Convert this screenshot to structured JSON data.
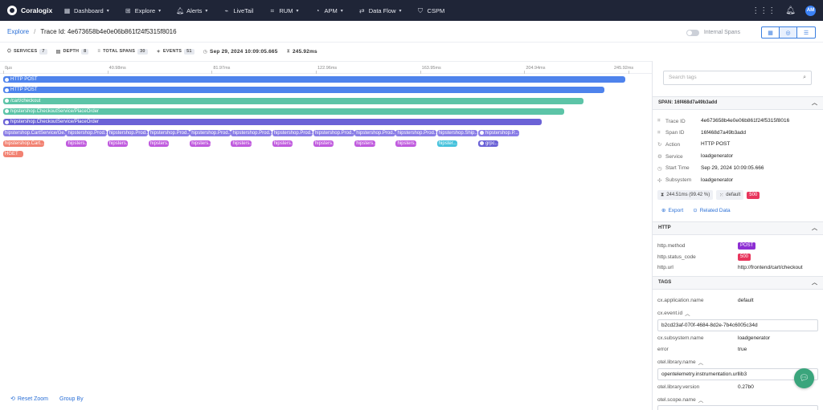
{
  "nav": {
    "brand": "Coralogix",
    "items": [
      {
        "label": "Dashboard",
        "icon": "grid-icon",
        "glyph": "▦",
        "caret": true
      },
      {
        "label": "Explore",
        "icon": "explore-icon",
        "glyph": "⊞",
        "caret": true
      },
      {
        "label": "Alerts",
        "icon": "bell-icon",
        "glyph": "🔔︎",
        "caret": true
      },
      {
        "label": "LiveTail",
        "icon": "livetail-icon",
        "glyph": "⌁",
        "caret": false
      },
      {
        "label": "RUM",
        "icon": "rum-icon",
        "glyph": "⌗",
        "caret": true
      },
      {
        "label": "APM",
        "icon": "gauge-icon",
        "glyph": "◔",
        "caret": true
      },
      {
        "label": "Data Flow",
        "icon": "dataflow-icon",
        "glyph": "⇄",
        "caret": true
      },
      {
        "label": "CSPM",
        "icon": "shield-icon",
        "glyph": "⛉",
        "caret": false
      }
    ],
    "avatar": "AM"
  },
  "breadcrumb": {
    "root": "Explore",
    "separator": "/",
    "current": "Trace Id: 4e673658b4e0e06b861f24f5315f8016"
  },
  "toolbar": {
    "internal_spans_label": "Internal Spans"
  },
  "stats": {
    "services_label": "SERVICES",
    "services_value": "7",
    "depth_label": "DEPTH",
    "depth_value": "8",
    "total_spans_label": "TOTAL SPANS",
    "total_spans_value": "30",
    "events_label": "EVENTS",
    "events_value": "51",
    "start_time": "Sep 29, 2024 10:09:05.665",
    "duration": "245.92ms"
  },
  "timeline": {
    "total_ms": 245.92,
    "ticks": [
      "0µs",
      "40.98ms",
      "81.97ms",
      "122.96ms",
      "163.95ms",
      "204.94ms",
      "245.92ms"
    ],
    "spans": [
      {
        "label": "HTTP POST",
        "color": "blue",
        "row": 0,
        "start": 0,
        "dur": 244.51
      },
      {
        "label": "HTTP POST",
        "color": "blue",
        "row": 1,
        "start": 0,
        "dur": 236.5
      },
      {
        "label": "/cart/checkout",
        "color": "teal",
        "row": 2,
        "start": 0,
        "dur": 228.2
      },
      {
        "label": "hipstershop.CheckoutService/PlaceOrder",
        "color": "teal",
        "row": 3,
        "start": 0,
        "dur": 220.5
      },
      {
        "label": "hipstershop.CheckoutService/PlaceOrder",
        "color": "violet",
        "row": 4,
        "start": 0,
        "dur": 211.7
      },
      {
        "label": "hipstershop.CartService/Ge...",
        "color": "lavender",
        "row": 5,
        "start": 0,
        "dur": 24.5
      },
      {
        "label": "hipstershop.Prod...",
        "color": "lavender",
        "row": 5,
        "start": 24.8,
        "dur": 16
      },
      {
        "label": "hipstershop.Prod...",
        "color": "lavender",
        "row": 5,
        "start": 41.0,
        "dur": 16
      },
      {
        "label": "hipstershop.Prod...",
        "color": "lavender",
        "row": 5,
        "start": 57.2,
        "dur": 16
      },
      {
        "label": "hipstershop.Prod...",
        "color": "lavender",
        "row": 5,
        "start": 73.4,
        "dur": 16
      },
      {
        "label": "hipstershop.Prod...",
        "color": "lavender",
        "row": 5,
        "start": 89.6,
        "dur": 16
      },
      {
        "label": "hipstershop.Prod...",
        "color": "lavender",
        "row": 5,
        "start": 105.8,
        "dur": 16
      },
      {
        "label": "hipstershop.Prod...",
        "color": "lavender",
        "row": 5,
        "start": 122.0,
        "dur": 16
      },
      {
        "label": "hipstershop.Prod...",
        "color": "lavender",
        "row": 5,
        "start": 138.2,
        "dur": 16
      },
      {
        "label": "hipstershop.Prod...",
        "color": "lavender",
        "row": 5,
        "start": 154.4,
        "dur": 16
      },
      {
        "label": "hipstershop.Ship...",
        "color": "lavender",
        "row": 5,
        "start": 170.6,
        "dur": 16
      },
      {
        "label": "hipstershop.P...",
        "color": "lavender",
        "row": 5,
        "start": 186.8,
        "dur": 16
      },
      {
        "label": "hipstershop.Cart...",
        "color": "salmon",
        "row": 6,
        "start": 0,
        "dur": 16
      },
      {
        "label": "hipsters...",
        "color": "lpurple",
        "row": 6,
        "start": 24.8,
        "dur": 8
      },
      {
        "label": "hipsters...",
        "color": "lpurple",
        "row": 6,
        "start": 41.0,
        "dur": 8
      },
      {
        "label": "hipsters...",
        "color": "lpurple",
        "row": 6,
        "start": 57.2,
        "dur": 8
      },
      {
        "label": "hipsters...",
        "color": "lpurple",
        "row": 6,
        "start": 73.4,
        "dur": 8
      },
      {
        "label": "hipsters...",
        "color": "lpurple",
        "row": 6,
        "start": 89.6,
        "dur": 8
      },
      {
        "label": "hipsters...",
        "color": "lpurple",
        "row": 6,
        "start": 105.8,
        "dur": 8
      },
      {
        "label": "hipsters...",
        "color": "lpurple",
        "row": 6,
        "start": 122.0,
        "dur": 8
      },
      {
        "label": "hipsters...",
        "color": "lpurple",
        "row": 6,
        "start": 138.2,
        "dur": 8
      },
      {
        "label": "hipsters...",
        "color": "lpurple",
        "row": 6,
        "start": 154.4,
        "dur": 8
      },
      {
        "label": "hipster...",
        "color": "cyan",
        "row": 6,
        "start": 170.6,
        "dur": 8
      },
      {
        "label": "grpc...",
        "color": "violet",
        "row": 6,
        "start": 186.8,
        "dur": 8
      },
      {
        "label": "HGET",
        "color": "salmon",
        "row": 7,
        "start": 0,
        "dur": 8
      }
    ]
  },
  "footer": {
    "reset_zoom": "Reset Zoom",
    "group_by": "Group By"
  },
  "panel": {
    "search_placeholder": "Search tags",
    "span_header": "SPAN: 16f468d7a49b3add",
    "span_fields": [
      {
        "key": "Trace ID",
        "value": "4e673658b4e0e06b861f24f5315f8016",
        "icon": "id-icon",
        "glyph": "⌗"
      },
      {
        "key": "Span ID",
        "value": "16f468d7a49b3add",
        "icon": "id-icon",
        "glyph": "⌗"
      },
      {
        "key": "Action",
        "value": "HTTP POST",
        "icon": "action-icon",
        "glyph": "↻"
      },
      {
        "key": "Service",
        "value": "loadgenerator",
        "icon": "service-icon",
        "glyph": "⚙"
      },
      {
        "key": "Start Time",
        "value": "Sep 29, 2024 10:09:05.666",
        "icon": "clock-icon",
        "glyph": "◷"
      },
      {
        "key": "Subsystem",
        "value": "loadgenerator",
        "icon": "subsystem-icon",
        "glyph": "✣"
      }
    ],
    "duration_chip": "244.51ms (99.42 %)",
    "app_chip": "default",
    "status_badge": "500",
    "export_label": "Export",
    "related_label": "Related Data",
    "http_header": "HTTP",
    "http_fields": [
      {
        "key": "http.method",
        "value": "POST",
        "badge": "purple"
      },
      {
        "key": "http.status_code",
        "value": "500",
        "badge": "red"
      },
      {
        "key": "http.url",
        "value": "http://frontend/cart/checkout",
        "badge": ""
      }
    ],
    "tags_header": "TAGS",
    "tags": {
      "app_name_key": "cx.application.name",
      "app_name_val": "default",
      "event_id_key": "cx.event.id",
      "event_id_val": "b2cd23af-070f-4684-8d2e-7b4c6005c34d",
      "subsystem_key": "cx.subsystem.name",
      "subsystem_val": "loadgenerator",
      "error_key": "error",
      "error_val": "true",
      "lib_name_key": "otel.library.name",
      "lib_name_val": "opentelemetry.instrumentation.urllib3",
      "lib_version_key": "otel.library.version",
      "lib_version_val": "0.27b0",
      "scope_key": "otel.scope.name"
    }
  },
  "colors": {
    "nav_bg": "#1f2537",
    "accent": "#2a6fd6",
    "http_blue": "#4e83ec",
    "teal": "#5cc4a7",
    "violet": "#6b62d6",
    "status_red": "#e8365d"
  }
}
